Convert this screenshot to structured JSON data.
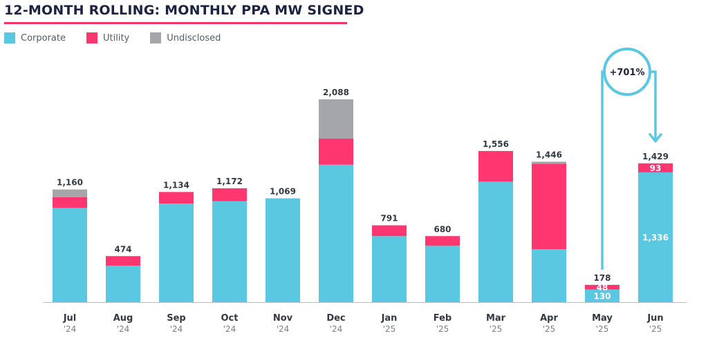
{
  "title": "12-MONTH ROLLING: MONTHLY PPA MW SIGNED",
  "legend": [
    {
      "name": "Corporate",
      "color": "#5bc8e2"
    },
    {
      "name": "Utility",
      "color": "#ff3670"
    },
    {
      "name": "Undisclosed",
      "color": "#a4a6a9"
    }
  ],
  "annotation": {
    "text": "+701%",
    "color": "#5bc8e2"
  },
  "chart_data": {
    "type": "bar",
    "stacked": true,
    "title": "12-MONTH ROLLING: MONTHLY PPA MW SIGNED",
    "categories": [
      {
        "month": "Jul",
        "year": "'24"
      },
      {
        "month": "Aug",
        "year": "'24"
      },
      {
        "month": "Sep",
        "year": "'24"
      },
      {
        "month": "Oct",
        "year": "'24"
      },
      {
        "month": "Nov",
        "year": "'24"
      },
      {
        "month": "Dec",
        "year": "'24"
      },
      {
        "month": "Jan",
        "year": "'25"
      },
      {
        "month": "Feb",
        "year": "'25"
      },
      {
        "month": "Mar",
        "year": "'25"
      },
      {
        "month": "Apr",
        "year": "'25"
      },
      {
        "month": "May",
        "year": "'25"
      },
      {
        "month": "Jun",
        "year": "'25"
      }
    ],
    "series": [
      {
        "name": "Corporate",
        "color": "#5bc8e2",
        "values": [
          970,
          375,
          1015,
          1040,
          1069,
          1415,
          680,
          580,
          1240,
          545,
          130,
          1336
        ]
      },
      {
        "name": "Utility",
        "color": "#ff3670",
        "values": [
          110,
          99,
          119,
          132,
          0,
          270,
          111,
          100,
          316,
          880,
          48,
          93
        ]
      },
      {
        "name": "Undisclosed",
        "color": "#a4a6a9",
        "values": [
          80,
          0,
          0,
          0,
          0,
          403,
          0,
          0,
          0,
          21,
          0,
          0
        ]
      }
    ],
    "totals": [
      "1,160",
      "474",
      "1,134",
      "1,172",
      "1,069",
      "2,088",
      "791",
      "680",
      "1,556",
      "1,446",
      "178",
      "1,429"
    ],
    "segment_labels": [
      {
        "category": 10,
        "series": 0,
        "text": "130"
      },
      {
        "category": 10,
        "series": 1,
        "text": "48"
      },
      {
        "category": 11,
        "series": 0,
        "text": "1,336"
      },
      {
        "category": 11,
        "series": 1,
        "text": "93"
      }
    ],
    "ylim": [
      0,
      2088
    ],
    "grid": false,
    "legend_position": "top-left"
  }
}
